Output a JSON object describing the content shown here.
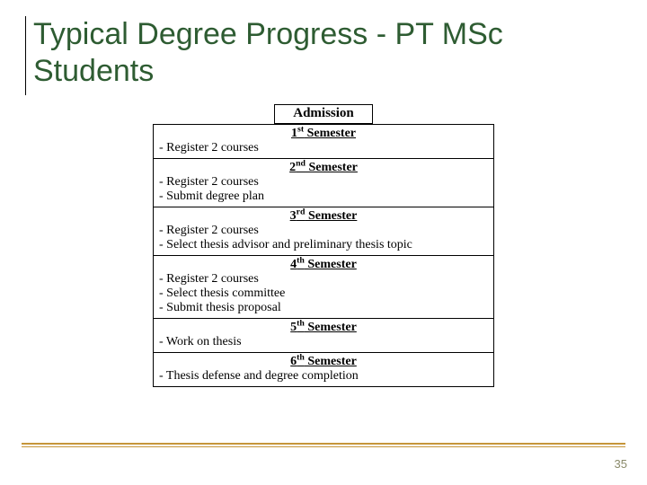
{
  "title": "Typical Degree Progress - PT MSc Students",
  "title_color": "#2e5c32",
  "admission_label": "Admission",
  "semesters": [
    {
      "ord": "1",
      "suffix": "st",
      "label": "Semester",
      "items": [
        "- Register 2 courses"
      ]
    },
    {
      "ord": "2",
      "suffix": "nd",
      "label": "Semester",
      "items": [
        "- Register 2 courses",
        "- Submit degree plan"
      ]
    },
    {
      "ord": "3",
      "suffix": "rd",
      "label": "Semester",
      "items": [
        "- Register 2 courses",
        "- Select thesis advisor and preliminary thesis topic"
      ]
    },
    {
      "ord": "4",
      "suffix": "th",
      "label": "Semester",
      "items": [
        "- Register 2 courses",
        "- Select thesis committee",
        "- Submit thesis proposal"
      ]
    },
    {
      "ord": "5",
      "suffix": "th",
      "label": "Semester",
      "items": [
        "- Work on thesis"
      ]
    },
    {
      "ord": "6",
      "suffix": "th",
      "label": "Semester",
      "items": [
        "- Thesis defense and degree completion"
      ]
    }
  ],
  "page_number": "35",
  "rule_color": "#c6963a",
  "border_color": "#000000",
  "background_color": "#ffffff"
}
